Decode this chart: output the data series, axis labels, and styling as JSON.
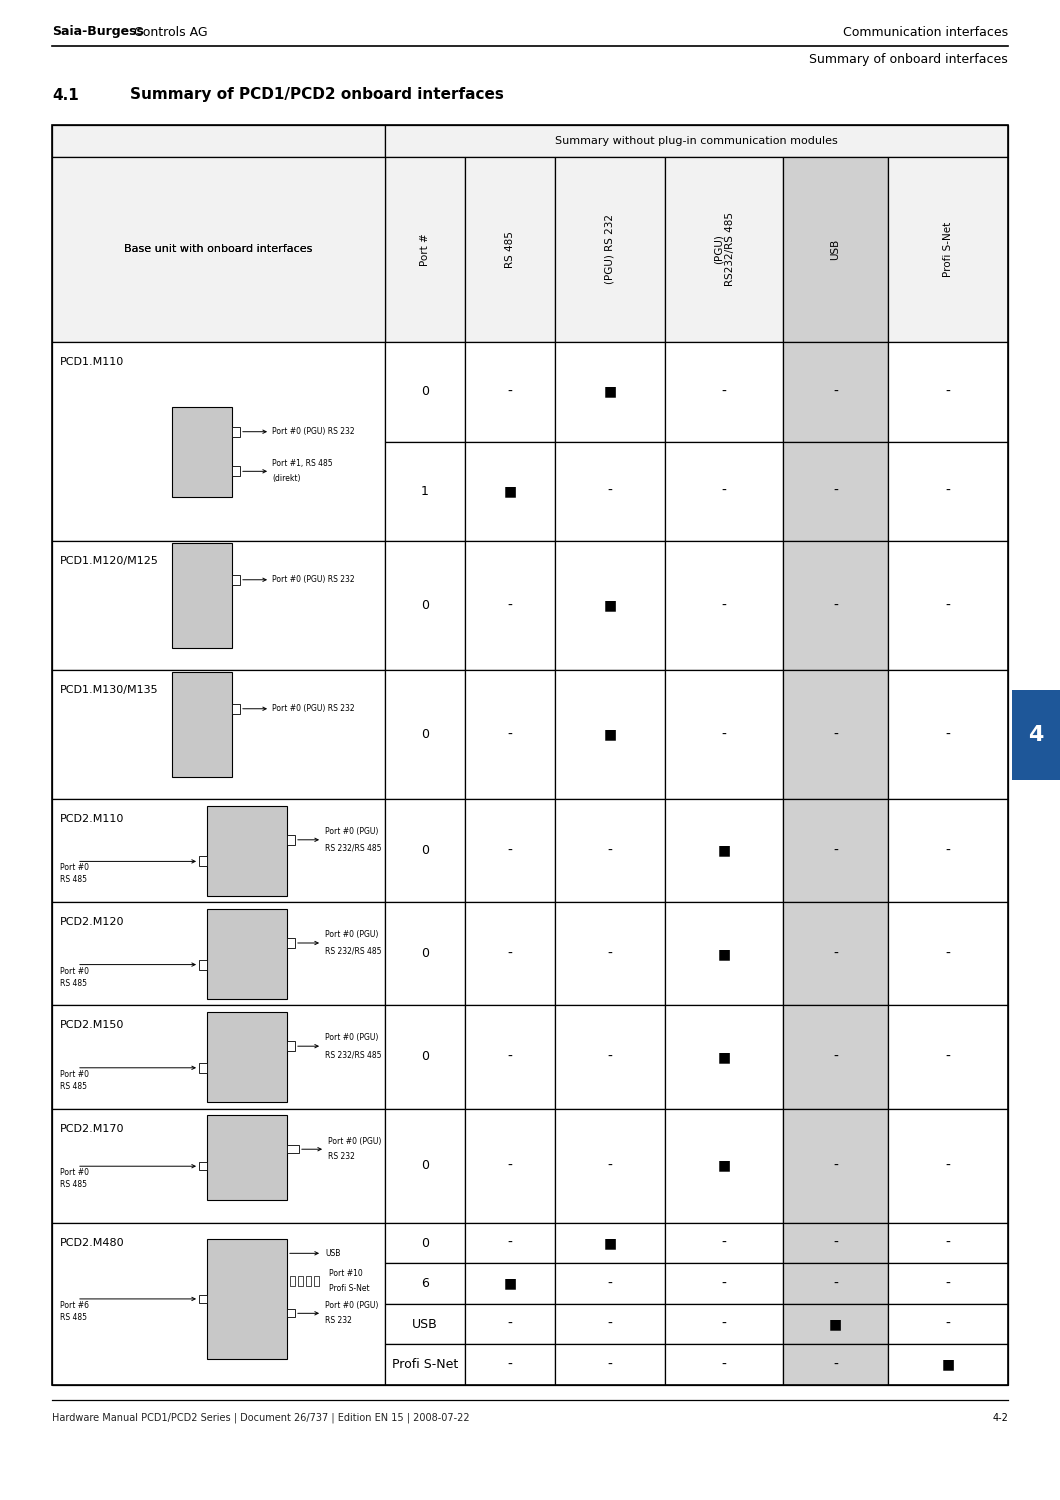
{
  "header_bold": "Saia-Burgess",
  "header_regular": " Controls AG",
  "header_right": "Communication interfaces",
  "subheader_right": "Summary of onboard interfaces",
  "section_num": "4.1",
  "section_title": "Summary of PCD1/PCD2 onboard interfaces",
  "footer_left": "Hardware Manual PCD1/PCD2 Series | Document 26/737 | Edition EN 15 | 2008-07-22",
  "footer_right": "4-2",
  "tab_label": "4",
  "tab_color": "#1e5799",
  "col_header_left": "Base unit with onboard interfaces",
  "col_header_right": "Summary without plug-in communication modules",
  "col_headers": [
    "Port #",
    "RS 485",
    "(PGU) RS 232",
    "(PGU)\nRS232/RS 485",
    "USB",
    "Profi S-Net"
  ],
  "col_shaded": [
    false,
    false,
    false,
    false,
    true,
    false
  ],
  "rows": [
    {
      "model": "PCD1.M110",
      "diagram": "pcd1_m110",
      "sub_rows": [
        {
          "port": "0",
          "vals": [
            "-",
            "■",
            "-",
            "-",
            "-"
          ]
        },
        {
          "port": "1",
          "vals": [
            "■",
            "-",
            "-",
            "-",
            "-"
          ]
        }
      ]
    },
    {
      "model": "PCD1.M120/M125",
      "diagram": "pcd1_m12x",
      "sub_rows": [
        {
          "port": "0",
          "vals": [
            "-",
            "■",
            "-",
            "-",
            "-"
          ]
        }
      ]
    },
    {
      "model": "PCD1.M130/M135",
      "diagram": "pcd1_m13x",
      "sub_rows": [
        {
          "port": "0",
          "vals": [
            "-",
            "■",
            "-",
            "-",
            "-"
          ]
        }
      ]
    },
    {
      "model": "PCD2.M110",
      "diagram": "pcd2_std",
      "sub_rows": [
        {
          "port": "0",
          "vals": [
            "-",
            "-",
            "■",
            "-",
            "-"
          ]
        }
      ]
    },
    {
      "model": "PCD2.M120",
      "diagram": "pcd2_std",
      "sub_rows": [
        {
          "port": "0",
          "vals": [
            "-",
            "-",
            "■",
            "-",
            "-"
          ]
        }
      ]
    },
    {
      "model": "PCD2.M150",
      "diagram": "pcd2_std",
      "sub_rows": [
        {
          "port": "0",
          "vals": [
            "-",
            "-",
            "■",
            "-",
            "-"
          ]
        }
      ]
    },
    {
      "model": "PCD2.M170",
      "diagram": "pcd2_m170",
      "sub_rows": [
        {
          "port": "0",
          "vals": [
            "-",
            "-",
            "■",
            "-",
            "-"
          ]
        }
      ]
    },
    {
      "model": "PCD2.M480",
      "diagram": "pcd2_m480",
      "sub_rows": [
        {
          "port": "0",
          "vals": [
            "-",
            "■",
            "-",
            "-",
            "-"
          ]
        },
        {
          "port": "6",
          "vals": [
            "■",
            "-",
            "-",
            "-",
            "-"
          ]
        },
        {
          "port": "USB",
          "vals": [
            "-",
            "-",
            "-",
            "■",
            "-"
          ]
        },
        {
          "port": "Profi S-Net",
          "vals": [
            "-",
            "-",
            "-",
            "-",
            "■"
          ]
        }
      ]
    }
  ]
}
